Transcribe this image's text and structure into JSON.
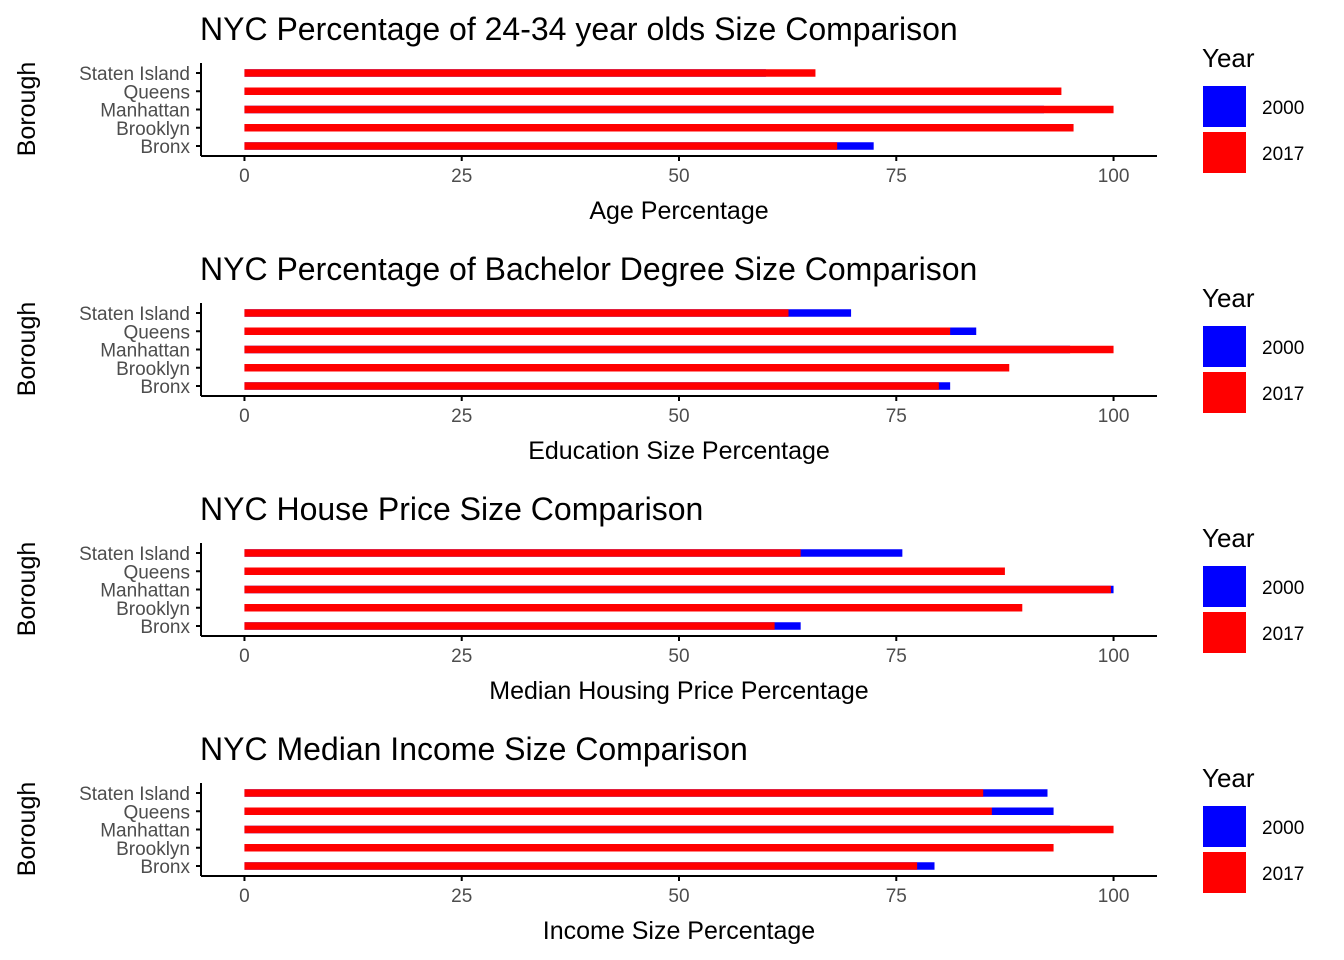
{
  "colors": {
    "2000": "#0000ff",
    "2017": "#ff0000",
    "axis": "#000000",
    "tick_label": "#4d4d4d",
    "text": "#000000",
    "background": "#ffffff"
  },
  "chart_data": [
    {
      "type": "bar",
      "title": "NYC Percentage of 24-34 year olds Size Comparison",
      "xlabel": "Age Percentage",
      "ylabel": "Borough",
      "xlim": [
        -5,
        105
      ],
      "x_ticks": [
        "0",
        "25",
        "50",
        "75",
        "100"
      ],
      "categories": [
        "Bronx",
        "Brooklyn",
        "Manhattan",
        "Queens",
        "Staten Island"
      ],
      "series": [
        {
          "name": "2000",
          "values": [
            72.4,
            85,
            92,
            82,
            60
          ]
        },
        {
          "name": "2017",
          "values": [
            68.2,
            95.4,
            100,
            94,
            65.7
          ]
        }
      ],
      "legend": {
        "title": "Year",
        "entries": [
          "2000",
          "2017"
        ],
        "position": "right"
      }
    },
    {
      "type": "bar",
      "title": "NYC Percentage of Bachelor Degree Size Comparison",
      "xlabel": "Education Size Percentage",
      "ylabel": "Borough",
      "xlim": [
        -5,
        105
      ],
      "x_ticks": [
        "0",
        "25",
        "50",
        "75",
        "100"
      ],
      "categories": [
        "Bronx",
        "Brooklyn",
        "Manhattan",
        "Queens",
        "Staten Island"
      ],
      "series": [
        {
          "name": "2000",
          "values": [
            81.2,
            85,
            95,
            84.2,
            69.8
          ]
        },
        {
          "name": "2017",
          "values": [
            79.9,
            88,
            100,
            81.2,
            62.6
          ]
        }
      ],
      "legend": {
        "title": "Year",
        "entries": [
          "2000",
          "2017"
        ],
        "position": "right"
      }
    },
    {
      "type": "bar",
      "title": "NYC House Price Size Comparison",
      "xlabel": "Median Housing Price Percentage",
      "ylabel": "Borough",
      "xlim": [
        -5,
        105
      ],
      "x_ticks": [
        "0",
        "25",
        "50",
        "75",
        "100"
      ],
      "categories": [
        "Bronx",
        "Brooklyn",
        "Manhattan",
        "Queens",
        "Staten Island"
      ],
      "series": [
        {
          "name": "2000",
          "values": [
            64,
            80,
            100,
            80,
            75.7
          ]
        },
        {
          "name": "2017",
          "values": [
            61,
            89.5,
            99.7,
            87.5,
            64
          ]
        }
      ],
      "legend": {
        "title": "Year",
        "entries": [
          "2000",
          "2017"
        ],
        "position": "right"
      }
    },
    {
      "type": "bar",
      "title": "NYC Median Income Size Comparison",
      "xlabel": "Income Size Percentage",
      "ylabel": "Borough",
      "xlim": [
        -5,
        105
      ],
      "x_ticks": [
        "0",
        "25",
        "50",
        "75",
        "100"
      ],
      "categories": [
        "Bronx",
        "Brooklyn",
        "Manhattan",
        "Queens",
        "Staten Island"
      ],
      "series": [
        {
          "name": "2000",
          "values": [
            79.4,
            88,
            95,
            93.1,
            92.4
          ]
        },
        {
          "name": "2017",
          "values": [
            77.4,
            93.1,
            100,
            86,
            85
          ]
        }
      ],
      "legend": {
        "title": "Year",
        "entries": [
          "2000",
          "2017"
        ],
        "position": "right"
      }
    }
  ]
}
